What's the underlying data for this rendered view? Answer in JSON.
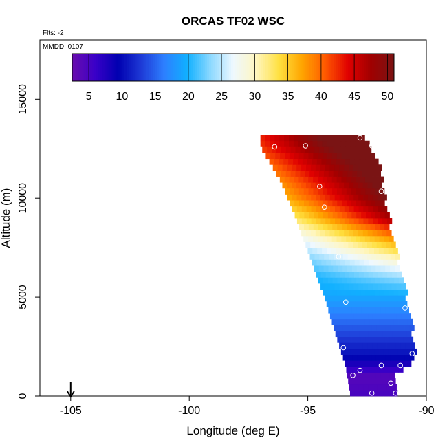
{
  "chart_data": {
    "type": "heatmap",
    "title": "ORCAS TF02 WSC",
    "xlabel": "Longitude (deg E)",
    "ylabel": "Altitude (m)",
    "xlim": [
      -106.3,
      -90.0
    ],
    "ylim": [
      0,
      18000
    ],
    "x_ticks": [
      "-105",
      "-100",
      "-95",
      "-90"
    ],
    "y_ticks": [
      "0",
      "5000",
      "10000",
      "15000"
    ],
    "flts_note": "Flts: -2",
    "mmdd_note": "MMDD: 0107",
    "grid": false,
    "legend": "colorbar at top inside the plot",
    "colorbar": {
      "min": 2.5,
      "max": 51,
      "tick_labels": [
        "5",
        "10",
        "15",
        "20",
        "25",
        "30",
        "35",
        "40",
        "45",
        "50"
      ],
      "colors": [
        "#6a0dad",
        "#3a00c8",
        "#0000b0",
        "#1e3ad6",
        "#2d7fff",
        "#10b0ff",
        "#8ad8ff",
        "#eef8ff",
        "#fff6c0",
        "#ffe040",
        "#ffa500",
        "#ff5a00",
        "#e00000",
        "#a00000",
        "#7a1414"
      ]
    },
    "marker_description": "white circles mark flight observation points",
    "wind_direction_arrow_at_longitude": -105.0,
    "data_extent": {
      "lon_left_at_alt": [
        [
          12600,
          -97.0
        ],
        [
          11000,
          -96.2
        ],
        [
          9000,
          -95.5
        ],
        [
          7000,
          -94.9
        ],
        [
          5000,
          -94.3
        ],
        [
          3000,
          -93.8
        ],
        [
          1500,
          -93.4
        ],
        [
          0,
          -93.2
        ]
      ],
      "lon_right_at_alt": [
        [
          13100,
          -92.8
        ],
        [
          12000,
          -92.1
        ],
        [
          10000,
          -91.8
        ],
        [
          8000,
          -91.5
        ],
        [
          6000,
          -91.1
        ],
        [
          4500,
          -90.8
        ],
        [
          2000,
          -90.5
        ],
        [
          1000,
          -91.4
        ],
        [
          0,
          -91.2
        ]
      ]
    },
    "speed_profile_by_altitude": [
      {
        "alt": 0,
        "speed": 5
      },
      {
        "alt": 1000,
        "speed": 4
      },
      {
        "alt": 2000,
        "speed": 10
      },
      {
        "alt": 3000,
        "speed": 13
      },
      {
        "alt": 4000,
        "speed": 16
      },
      {
        "alt": 5000,
        "speed": 19
      },
      {
        "alt": 6000,
        "speed": 22
      },
      {
        "alt": 7000,
        "speed": 27
      },
      {
        "alt": 8000,
        "speed": 33
      },
      {
        "alt": 9000,
        "speed": 40
      },
      {
        "alt": 10000,
        "speed": 44
      },
      {
        "alt": 11000,
        "speed": 46
      },
      {
        "alt": 12000,
        "speed": 48
      },
      {
        "alt": 13000,
        "speed": 50
      }
    ],
    "west_edge_offset": 14,
    "points": [
      {
        "lon": -96.4,
        "alt": 12600
      },
      {
        "lon": -95.1,
        "alt": 12650
      },
      {
        "lon": -92.8,
        "alt": 13050
      },
      {
        "lon": -92.3,
        "alt": 12650
      },
      {
        "lon": -94.5,
        "alt": 10600
      },
      {
        "lon": -94.3,
        "alt": 9550
      },
      {
        "lon": -91.9,
        "alt": 10350
      },
      {
        "lon": -93.7,
        "alt": 7050
      },
      {
        "lon": -93.4,
        "alt": 4750
      },
      {
        "lon": -90.9,
        "alt": 4450
      },
      {
        "lon": -93.5,
        "alt": 2450
      },
      {
        "lon": -90.6,
        "alt": 2150
      },
      {
        "lon": -91.1,
        "alt": 1550
      },
      {
        "lon": -91.9,
        "alt": 1550
      },
      {
        "lon": -92.8,
        "alt": 1300
      },
      {
        "lon": -93.1,
        "alt": 1050
      },
      {
        "lon": -93.5,
        "alt": 1100
      },
      {
        "lon": -91.5,
        "alt": 650
      },
      {
        "lon": -93.4,
        "alt": 150
      },
      {
        "lon": -92.3,
        "alt": 150
      },
      {
        "lon": -91.3,
        "alt": 150
      }
    ]
  }
}
